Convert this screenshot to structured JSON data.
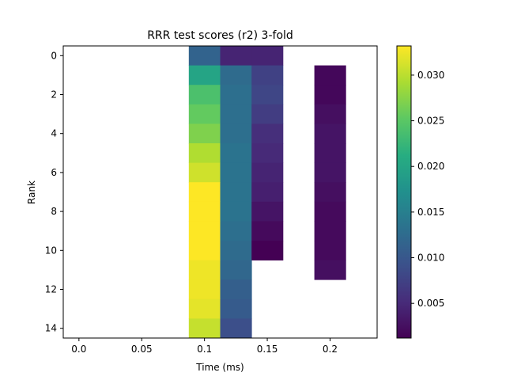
{
  "chart_data": {
    "type": "heatmap",
    "title": "RRR test scores (r2) 3-fold",
    "xlabel": "Time (ms)",
    "ylabel": "Rank",
    "x": [
      0.0,
      0.025,
      0.05,
      0.075,
      0.1,
      0.125,
      0.15,
      0.175,
      0.2,
      0.225
    ],
    "y": [
      0,
      1,
      2,
      3,
      4,
      5,
      6,
      7,
      8,
      9,
      10,
      11,
      12,
      13,
      14
    ],
    "xticks": [
      0.0,
      0.05,
      0.1,
      0.15,
      0.2
    ],
    "xtick_labels": [
      "0.0",
      "0.05",
      "0.1",
      "0.15",
      "0.2"
    ],
    "yticks": [
      0,
      2,
      4,
      6,
      8,
      10,
      12,
      14
    ],
    "ytick_labels": [
      "0",
      "2",
      "4",
      "6",
      "8",
      "10",
      "12",
      "14"
    ],
    "colorbar": {
      "vmin": 0.0012,
      "vmax": 0.0332,
      "ticks": [
        0.005,
        0.01,
        0.015,
        0.02,
        0.025,
        0.03
      ],
      "tick_labels": [
        "0.005",
        "0.010",
        "0.015",
        "0.020",
        "0.025",
        "0.030"
      ],
      "colormap": "viridis"
    },
    "values": [
      [
        null,
        null,
        null,
        null,
        0.0115,
        0.0045,
        0.0045,
        null,
        null,
        null
      ],
      [
        null,
        null,
        null,
        null,
        0.02,
        0.0125,
        0.0075,
        null,
        0.0018,
        null
      ],
      [
        null,
        null,
        null,
        null,
        0.024,
        0.013,
        0.008,
        null,
        0.0018,
        null
      ],
      [
        null,
        null,
        null,
        null,
        0.0255,
        0.013,
        0.007,
        null,
        0.0025,
        null
      ],
      [
        null,
        null,
        null,
        null,
        0.027,
        0.013,
        0.0055,
        null,
        0.003,
        null
      ],
      [
        null,
        null,
        null,
        null,
        0.0295,
        0.0135,
        0.005,
        null,
        0.003,
        null
      ],
      [
        null,
        null,
        null,
        null,
        0.031,
        0.0135,
        0.0045,
        null,
        0.003,
        null
      ],
      [
        null,
        null,
        null,
        null,
        0.0332,
        0.0135,
        0.004,
        null,
        0.0025,
        null
      ],
      [
        null,
        null,
        null,
        null,
        0.0332,
        0.0135,
        0.003,
        null,
        0.002,
        null
      ],
      [
        null,
        null,
        null,
        null,
        0.0332,
        0.013,
        0.002,
        null,
        0.002,
        null
      ],
      [
        null,
        null,
        null,
        null,
        0.0332,
        0.0125,
        0.0012,
        null,
        0.002,
        null
      ],
      [
        null,
        null,
        null,
        null,
        0.0325,
        0.012,
        null,
        null,
        0.0025,
        null
      ],
      [
        null,
        null,
        null,
        null,
        0.0325,
        0.011,
        null,
        null,
        null,
        null
      ],
      [
        null,
        null,
        null,
        null,
        0.032,
        0.0105,
        null,
        null,
        null,
        null
      ],
      [
        null,
        null,
        null,
        null,
        0.0305,
        0.009,
        null,
        null,
        null,
        null
      ]
    ]
  }
}
